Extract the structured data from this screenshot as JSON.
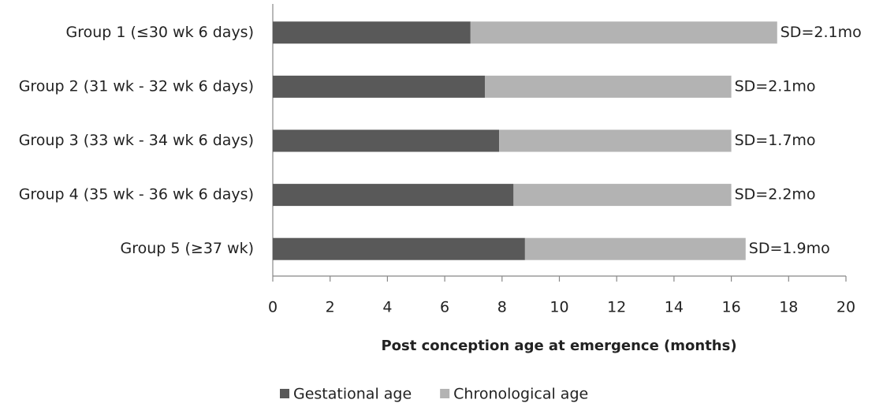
{
  "chart_data": {
    "type": "stacked_bar_horizontal",
    "xlabel": "Post conception age at emergence (months)",
    "categories": [
      "Group 1 (≤30 wk 6 days)",
      "Group 2 (31 wk - 32 wk 6 days)",
      "Group 3 (33 wk - 34 wk 6 days)",
      "Group 4 (35 wk - 36 wk 6 days)",
      "Group 5 (≥37 wk)"
    ],
    "series": [
      {
        "name": "Gestational age",
        "color": "#595959",
        "values": [
          6.9,
          7.4,
          7.9,
          8.4,
          8.8
        ]
      },
      {
        "name": "Chronological age",
        "color": "#b3b3b3",
        "values": [
          10.7,
          8.6,
          8.1,
          7.6,
          7.7
        ]
      }
    ],
    "annotations": [
      "SD=2.1mo",
      "SD=2.1mo",
      "SD=1.7mo",
      "SD=2.2mo",
      "SD=1.9mo"
    ],
    "xlim": [
      0,
      20
    ],
    "xticks": [
      0,
      2,
      4,
      6,
      8,
      10,
      12,
      14,
      16,
      18,
      20
    ],
    "legend": "bottom"
  }
}
